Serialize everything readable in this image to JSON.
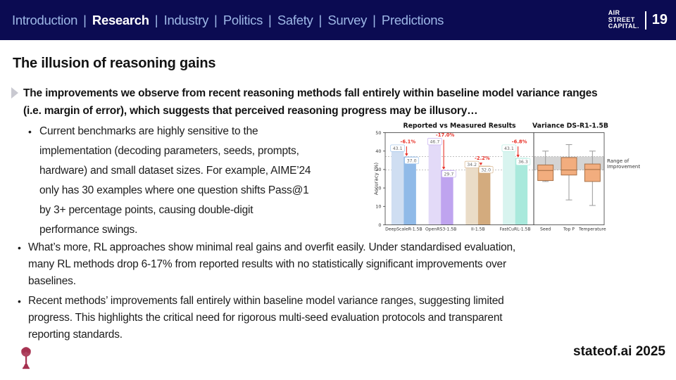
{
  "header": {
    "nav_items": [
      {
        "label": "Introduction",
        "active": false
      },
      {
        "label": "Research",
        "active": true
      },
      {
        "label": "Industry",
        "active": false
      },
      {
        "label": "Politics",
        "active": false
      },
      {
        "label": "Safety",
        "active": false
      },
      {
        "label": "Survey",
        "active": false
      },
      {
        "label": "Predictions",
        "active": false
      }
    ],
    "separator": "|",
    "logo_lines": [
      "AIR",
      "STREET",
      "CAPITAL"
    ],
    "logo_dot": ".",
    "page_number": "19"
  },
  "slide": {
    "title": "The illusion of reasoning gains",
    "bullet_glyph": "●",
    "subtitle": "The improvements we observe from recent reasoning methods fall entirely within baseline model variance ranges\n(i.e. margin of error), which suggests that perceived reasoning progress may be illusory…",
    "bullets": [
      "Current benchmarks are highly sensitive to the\nimplementation (decoding parameters, seeds, prompts,\nhardware) and small dataset sizes. For example, AIME’24\nonly has 30 examples where one question shifts Pass@1\nby 3+ percentage points, causing double-digit\nperformance swings.",
      "What’s more, RL approaches show minimal real gains and overfit easily. Under standardised evaluation,\nmany RL methods drop 6-17% from reported results with no statistically significant improvements over\nbaselines.",
      "Recent methods’ improvements fall entirely within baseline model variance ranges, suggesting limited\nprogress. This highlights the critical need for rigorous multi-seed evaluation protocols and transparent\nreporting standards."
    ],
    "footer_brand": "stateof.ai 2025"
  },
  "colors": {
    "header_bg": "#0b0b52",
    "nav_link": "#9db7e6",
    "nav_active": "#ffffff",
    "logo_dot": "#e8501e",
    "tree_logo": "#a63150",
    "delta_red": "#e8332a"
  },
  "chart_data": {
    "type": "bar",
    "delta_color": "#e8332a",
    "panels": [
      {
        "type": "bar",
        "title": "Reported vs Measured Results",
        "ylabel": "Accuracy (%)",
        "ylim": [
          0,
          50
        ],
        "yticks": [
          0,
          10,
          20,
          30,
          40,
          50
        ],
        "categories": [
          "DeepScaleR-1.5B",
          "OpenRS3-1.5B",
          "II-1.5B",
          "FastCuRL-1.5B"
        ],
        "series": [
          {
            "name": "Reported",
            "values": [
              43.1,
              46.7,
              34.2,
              43.1
            ]
          },
          {
            "name": "Measured",
            "values": [
              37.0,
              29.7,
              32.0,
              36.3
            ]
          }
        ],
        "deltas": [
          "-6.1%",
          "-17.0%",
          "-2.2%",
          "-6.8%"
        ],
        "bar_colors_reported": [
          "#cfdef2",
          "#e3daf8",
          "#eadcc7",
          "#d8f4ef"
        ],
        "bar_colors_measured": [
          "#90bae8",
          "#bfa4ef",
          "#d3ab7e",
          "#a9e9dc"
        ],
        "dashed_lines": [
          37.0,
          29.7
        ]
      },
      {
        "type": "boxplot",
        "title": "Variance DS-R1-1.5B",
        "categories": [
          "Seed",
          "Top P",
          "Temperature"
        ],
        "boxes": [
          {
            "whisker_low": 23.5,
            "q1": 24.0,
            "median": 29.5,
            "q3": 32.5,
            "whisker_high": 40.0
          },
          {
            "whisker_low": 13.5,
            "q1": 27.0,
            "median": 29.7,
            "q3": 36.5,
            "whisker_high": 43.5
          },
          {
            "whisker_low": 10.5,
            "q1": 23.5,
            "median": 30.0,
            "q3": 33.0,
            "whisker_high": 40.0
          }
        ],
        "box_color": "#f2ad7e",
        "box_edge_color": "#a06a40",
        "band": {
          "from": 29.7,
          "to": 37.0,
          "color": "#cccccc",
          "label": "Range of\nImprovement"
        }
      }
    ]
  }
}
